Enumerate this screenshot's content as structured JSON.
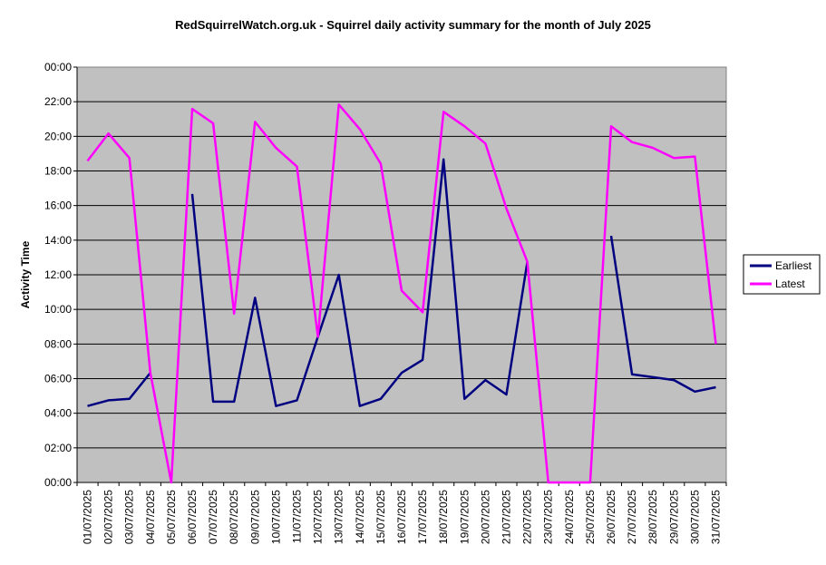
{
  "chart_data": {
    "type": "line",
    "title": "RedSquirrelWatch.org.uk - Squirrel daily activity summary for the month of July 2025",
    "ylabel": "Activity Time",
    "xlabel": "",
    "ylim": [
      "00:00",
      "00:00"
    ],
    "y_ticks": [
      "00:00",
      "02:00",
      "04:00",
      "06:00",
      "08:00",
      "10:00",
      "12:00",
      "14:00",
      "16:00",
      "18:00",
      "20:00",
      "22:00",
      "00:00"
    ],
    "categories": [
      "01/07/2025",
      "02/07/2025",
      "03/07/2025",
      "04/07/2025",
      "05/07/2025",
      "06/07/2025",
      "07/07/2025",
      "08/07/2025",
      "09/07/2025",
      "10/07/2025",
      "11/07/2025",
      "12/07/2025",
      "13/07/2025",
      "14/07/2025",
      "15/07/2025",
      "16/07/2025",
      "17/07/2025",
      "18/07/2025",
      "19/07/2025",
      "20/07/2025",
      "21/07/2025",
      "22/07/2025",
      "23/07/2025",
      "24/07/2025",
      "25/07/2025",
      "26/07/2025",
      "27/07/2025",
      "28/07/2025",
      "29/07/2025",
      "30/07/2025",
      "31/07/2025"
    ],
    "series": [
      {
        "name": "Earliest",
        "color": "#000080",
        "values": [
          "04:25",
          "04:45",
          "04:50",
          "06:20",
          null,
          "16:40",
          "04:40",
          "04:40",
          "10:40",
          "04:25",
          "04:45",
          "08:25",
          "12:00",
          "04:25",
          "04:50",
          "06:20",
          "07:05",
          "18:40",
          "04:50",
          "05:55",
          "05:05",
          "12:45",
          null,
          null,
          null,
          "14:15",
          "06:15",
          "06:05",
          "05:55",
          "05:15",
          "05:30"
        ]
      },
      {
        "name": "Latest",
        "color": "#FF00FF",
        "values": [
          "18:35",
          "20:10",
          "18:45",
          "06:20",
          "00:00",
          "21:35",
          "20:45",
          "09:45",
          "20:50",
          "19:20",
          "18:15",
          "08:25",
          "21:50",
          "20:25",
          "18:25",
          "11:05",
          "09:50",
          "21:25",
          "20:35",
          "19:35",
          "15:50",
          "12:45",
          "00:00",
          "00:00",
          "00:00",
          "20:35",
          "19:40",
          "19:20",
          "18:45",
          "18:50",
          "08:00"
        ]
      }
    ],
    "grid": true,
    "legend": "right"
  }
}
